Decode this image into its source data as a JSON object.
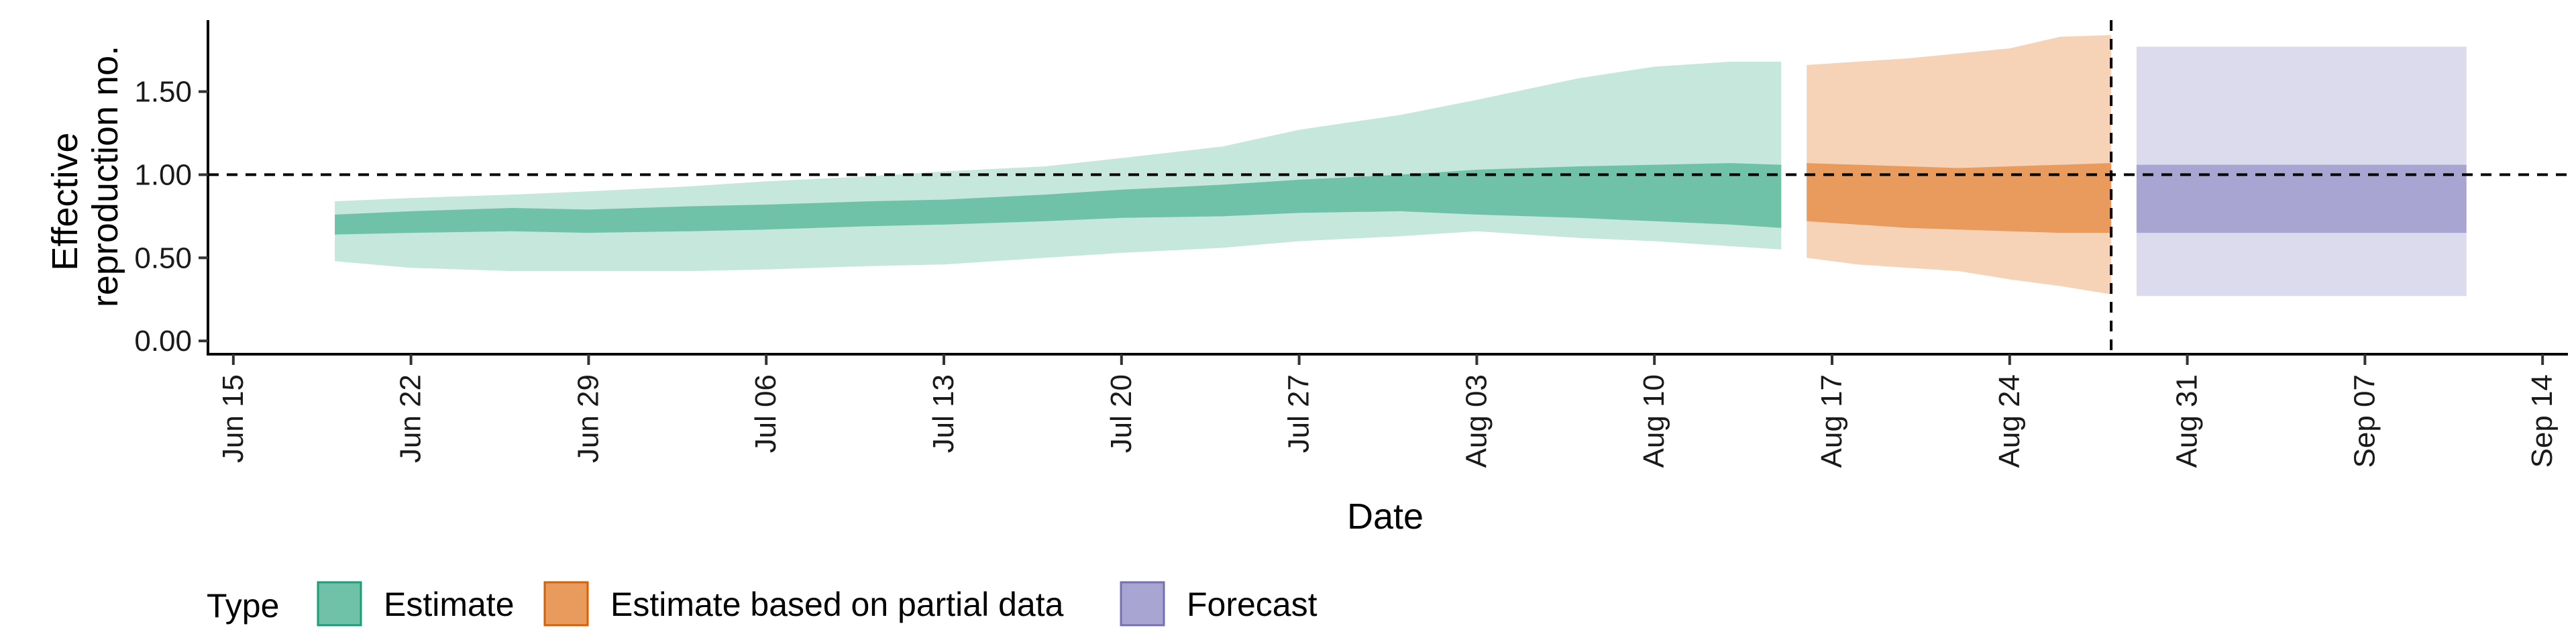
{
  "chart_data": {
    "type": "area",
    "xlabel": "Date",
    "ylabel_lines": [
      "Effective",
      "reproduction no."
    ],
    "x_ticks": [
      "Jun 15",
      "Jun 22",
      "Jun 29",
      "Jul 06",
      "Jul 13",
      "Jul 20",
      "Jul 27",
      "Aug 03",
      "Aug 10",
      "Aug 17",
      "Aug 24",
      "Aug 31",
      "Sep 07",
      "Sep 14"
    ],
    "x_range": [
      "2020-06-14",
      "2020-09-15"
    ],
    "y_ticks": [
      "0.00",
      "0.50",
      "1.00",
      "1.50"
    ],
    "ylim": [
      -0.08,
      1.93
    ],
    "reference_line": {
      "y": 1.0,
      "style": "dashed"
    },
    "vertical_line": {
      "x": "2020-08-28",
      "style": "dashed"
    },
    "grid": false,
    "legend": {
      "title": "Type",
      "position": "bottom",
      "entries": [
        {
          "label": "Estimate",
          "fill": "#6fc2a8",
          "stroke": "#1b9e77"
        },
        {
          "label": "Estimate based on partial data",
          "fill": "#e99b5e",
          "stroke": "#d95f02"
        },
        {
          "label": "Forecast",
          "fill": "#a8a5d3",
          "stroke": "#7570b3"
        }
      ]
    },
    "series": [
      {
        "name": "Estimate",
        "outer_color": "#c5e7dc",
        "inner_color": "#6fc2a8",
        "x": [
          "2020-06-19",
          "2020-06-22",
          "2020-06-26",
          "2020-06-29",
          "2020-07-03",
          "2020-07-06",
          "2020-07-10",
          "2020-07-13",
          "2020-07-17",
          "2020-07-20",
          "2020-07-24",
          "2020-07-27",
          "2020-07-31",
          "2020-08-03",
          "2020-08-07",
          "2020-08-10",
          "2020-08-13",
          "2020-08-15"
        ],
        "outer_lower": [
          0.48,
          0.44,
          0.42,
          0.42,
          0.42,
          0.43,
          0.45,
          0.46,
          0.5,
          0.53,
          0.56,
          0.6,
          0.63,
          0.66,
          0.62,
          0.6,
          0.57,
          0.55
        ],
        "outer_upper": [
          0.84,
          0.86,
          0.88,
          0.9,
          0.93,
          0.96,
          0.99,
          1.02,
          1.05,
          1.1,
          1.17,
          1.27,
          1.36,
          1.45,
          1.58,
          1.65,
          1.68,
          1.68
        ],
        "inner_lower": [
          0.64,
          0.65,
          0.66,
          0.65,
          0.66,
          0.67,
          0.69,
          0.7,
          0.72,
          0.74,
          0.75,
          0.77,
          0.78,
          0.76,
          0.74,
          0.72,
          0.7,
          0.68
        ],
        "inner_upper": [
          0.76,
          0.78,
          0.8,
          0.79,
          0.81,
          0.82,
          0.84,
          0.85,
          0.88,
          0.91,
          0.94,
          0.97,
          1.0,
          1.03,
          1.05,
          1.06,
          1.07,
          1.06
        ]
      },
      {
        "name": "Estimate based on partial data",
        "outer_color": "#f6d2b7",
        "inner_color": "#e99b5e",
        "x": [
          "2020-08-16",
          "2020-08-18",
          "2020-08-20",
          "2020-08-22",
          "2020-08-24",
          "2020-08-26",
          "2020-08-28"
        ],
        "outer_lower": [
          0.5,
          0.46,
          0.44,
          0.42,
          0.37,
          0.33,
          0.28
        ],
        "outer_upper": [
          1.66,
          1.68,
          1.7,
          1.73,
          1.76,
          1.83,
          1.84
        ],
        "inner_lower": [
          0.72,
          0.7,
          0.68,
          0.67,
          0.66,
          0.65,
          0.65
        ],
        "inner_upper": [
          1.07,
          1.06,
          1.05,
          1.04,
          1.05,
          1.06,
          1.07
        ]
      },
      {
        "name": "Forecast",
        "outer_color": "#dcdbed",
        "inner_color": "#a8a5d3",
        "x": [
          "2020-08-29",
          "2020-09-11"
        ],
        "outer_lower": [
          0.27,
          0.27
        ],
        "outer_upper": [
          1.77,
          1.77
        ],
        "inner_lower": [
          0.65,
          0.65
        ],
        "inner_upper": [
          1.06,
          1.06
        ]
      }
    ]
  }
}
